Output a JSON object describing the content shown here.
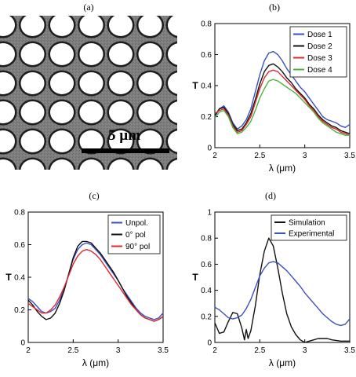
{
  "panel_labels": [
    "(a)",
    "(b)",
    "(c)",
    "(d)"
  ],
  "micrograph": {
    "scale_bar_text": "5 µm",
    "colors": {
      "background": "#7a7a7a",
      "hole": "#ffffff",
      "edge": "#1e1e1e"
    }
  },
  "chart_data": [
    {
      "type": "line",
      "panel": "(b)",
      "xlabel": "λ (μm)",
      "ylabel": "T",
      "xlim": [
        2,
        3.5
      ],
      "ylim": [
        0,
        0.8
      ],
      "xticks": [
        "2",
        "2.5",
        "3",
        "3.5"
      ],
      "yticks": [
        "0",
        "0.2",
        "0.4",
        "0.6",
        "0.8"
      ],
      "legend_position": "top-right",
      "x": [
        2.0,
        2.05,
        2.1,
        2.15,
        2.2,
        2.25,
        2.3,
        2.35,
        2.4,
        2.45,
        2.5,
        2.55,
        2.6,
        2.65,
        2.7,
        2.75,
        2.8,
        2.85,
        2.9,
        2.95,
        3.0,
        3.05,
        3.1,
        3.15,
        3.2,
        3.25,
        3.3,
        3.35,
        3.4,
        3.45,
        3.5
      ],
      "series": [
        {
          "name": "Dose 1",
          "color": "#3b4fc4",
          "values": [
            0.2,
            0.25,
            0.27,
            0.23,
            0.16,
            0.12,
            0.14,
            0.18,
            0.25,
            0.36,
            0.47,
            0.56,
            0.61,
            0.62,
            0.6,
            0.56,
            0.51,
            0.47,
            0.43,
            0.39,
            0.36,
            0.32,
            0.28,
            0.24,
            0.2,
            0.18,
            0.17,
            0.16,
            0.14,
            0.13,
            0.15
          ]
        },
        {
          "name": "Dose 2",
          "color": "#111111",
          "values": [
            0.21,
            0.25,
            0.26,
            0.22,
            0.15,
            0.11,
            0.12,
            0.16,
            0.22,
            0.31,
            0.41,
            0.49,
            0.53,
            0.54,
            0.52,
            0.49,
            0.45,
            0.42,
            0.38,
            0.35,
            0.32,
            0.28,
            0.25,
            0.21,
            0.18,
            0.16,
            0.14,
            0.13,
            0.11,
            0.1,
            0.09
          ]
        },
        {
          "name": "Dose 3",
          "color": "#e0282e",
          "values": [
            0.22,
            0.24,
            0.25,
            0.21,
            0.14,
            0.1,
            0.11,
            0.15,
            0.2,
            0.29,
            0.38,
            0.45,
            0.49,
            0.5,
            0.49,
            0.46,
            0.43,
            0.4,
            0.37,
            0.34,
            0.31,
            0.27,
            0.24,
            0.2,
            0.17,
            0.15,
            0.13,
            0.12,
            0.1,
            0.09,
            0.08
          ]
        },
        {
          "name": "Dose 4",
          "color": "#4db33d",
          "values": [
            0.19,
            0.23,
            0.24,
            0.2,
            0.13,
            0.09,
            0.1,
            0.13,
            0.17,
            0.24,
            0.32,
            0.38,
            0.43,
            0.44,
            0.43,
            0.41,
            0.39,
            0.37,
            0.35,
            0.32,
            0.29,
            0.26,
            0.23,
            0.19,
            0.16,
            0.14,
            0.12,
            0.1,
            0.09,
            0.08,
            0.08
          ]
        }
      ]
    },
    {
      "type": "line",
      "panel": "(c)",
      "xlabel": "λ (μm)",
      "ylabel": "T",
      "xlim": [
        2,
        3.5
      ],
      "ylim": [
        0,
        0.8
      ],
      "xticks": [
        "2",
        "2.5",
        "3",
        "3.5"
      ],
      "yticks": [
        "0",
        "0.2",
        "0.4",
        "0.6",
        "0.8"
      ],
      "legend_position": "top-right",
      "x": [
        2.0,
        2.05,
        2.1,
        2.15,
        2.2,
        2.25,
        2.3,
        2.35,
        2.4,
        2.45,
        2.5,
        2.55,
        2.6,
        2.65,
        2.7,
        2.75,
        2.8,
        2.85,
        2.9,
        2.95,
        3.0,
        3.05,
        3.1,
        3.15,
        3.2,
        3.25,
        3.3,
        3.35,
        3.4,
        3.45,
        3.5
      ],
      "series": [
        {
          "name": "Unpol.",
          "color": "#3b4fc4",
          "values": [
            0.27,
            0.25,
            0.22,
            0.19,
            0.18,
            0.19,
            0.21,
            0.26,
            0.33,
            0.42,
            0.51,
            0.57,
            0.6,
            0.61,
            0.6,
            0.57,
            0.54,
            0.5,
            0.46,
            0.42,
            0.38,
            0.33,
            0.29,
            0.25,
            0.21,
            0.18,
            0.16,
            0.15,
            0.14,
            0.15,
            0.18
          ]
        },
        {
          "name": "0° pol",
          "color": "#111111",
          "values": [
            0.26,
            0.23,
            0.19,
            0.16,
            0.14,
            0.15,
            0.18,
            0.24,
            0.32,
            0.42,
            0.52,
            0.59,
            0.62,
            0.62,
            0.61,
            0.58,
            0.55,
            0.51,
            0.47,
            0.43,
            0.38,
            0.33,
            0.28,
            0.24,
            0.2,
            0.17,
            0.15,
            0.14,
            0.13,
            0.14,
            0.16
          ]
        },
        {
          "name": "90° pol",
          "color": "#e0282e",
          "values": [
            0.24,
            0.22,
            0.2,
            0.18,
            0.18,
            0.2,
            0.23,
            0.28,
            0.34,
            0.41,
            0.48,
            0.53,
            0.56,
            0.57,
            0.56,
            0.54,
            0.51,
            0.47,
            0.43,
            0.39,
            0.35,
            0.31,
            0.27,
            0.23,
            0.2,
            0.17,
            0.15,
            0.14,
            0.13,
            0.14,
            0.16
          ]
        }
      ]
    },
    {
      "type": "line",
      "panel": "(d)",
      "xlabel": "λ (μm)",
      "ylabel": "T",
      "xlim": [
        2,
        3.5
      ],
      "ylim": [
        0,
        1
      ],
      "xticks": [
        "2",
        "2.5",
        "3",
        "3.5"
      ],
      "yticks": [
        "0",
        "0.2",
        "0.4",
        "0.6",
        "0.8",
        "1"
      ],
      "legend_position": "top-right",
      "series": [
        {
          "name": "Simulation",
          "color": "#111111",
          "x": [
            2.0,
            2.05,
            2.1,
            2.15,
            2.2,
            2.25,
            2.3,
            2.33,
            2.35,
            2.37,
            2.4,
            2.45,
            2.5,
            2.55,
            2.6,
            2.65,
            2.7,
            2.75,
            2.8,
            2.85,
            2.9,
            2.95,
            3.0,
            3.05,
            3.1,
            3.15,
            3.2,
            3.25,
            3.3,
            3.4,
            3.5
          ],
          "values": [
            0.15,
            0.07,
            0.08,
            0.16,
            0.23,
            0.22,
            0.11,
            0.02,
            0.1,
            0.03,
            0.09,
            0.28,
            0.52,
            0.7,
            0.8,
            0.74,
            0.57,
            0.38,
            0.22,
            0.12,
            0.06,
            0.02,
            0.0,
            0.01,
            0.02,
            0.03,
            0.03,
            0.03,
            0.02,
            0.01,
            0.01
          ]
        },
        {
          "name": "Experimental",
          "color": "#3b4fc4",
          "x": [
            2.0,
            2.05,
            2.1,
            2.15,
            2.2,
            2.25,
            2.3,
            2.35,
            2.4,
            2.45,
            2.5,
            2.55,
            2.6,
            2.65,
            2.7,
            2.75,
            2.8,
            2.85,
            2.9,
            2.95,
            3.0,
            3.05,
            3.1,
            3.15,
            3.2,
            3.25,
            3.3,
            3.35,
            3.4,
            3.45,
            3.5
          ],
          "values": [
            0.27,
            0.25,
            0.22,
            0.19,
            0.18,
            0.19,
            0.21,
            0.26,
            0.33,
            0.42,
            0.51,
            0.57,
            0.61,
            0.62,
            0.61,
            0.58,
            0.55,
            0.51,
            0.47,
            0.43,
            0.38,
            0.34,
            0.3,
            0.26,
            0.22,
            0.19,
            0.16,
            0.14,
            0.13,
            0.14,
            0.18
          ]
        }
      ]
    }
  ]
}
